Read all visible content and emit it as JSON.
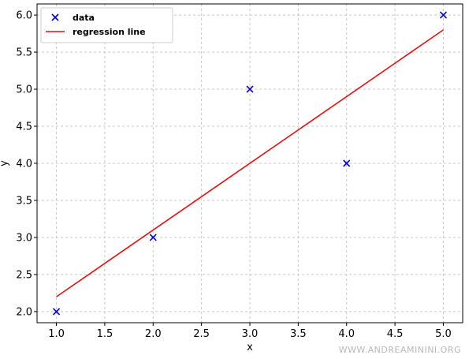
{
  "chart_data": {
    "type": "scatter",
    "xlabel": "x",
    "ylabel": "y",
    "xlim": [
      0.8,
      5.2
    ],
    "ylim": [
      1.85,
      6.15
    ],
    "x_ticks": [
      1.0,
      1.5,
      2.0,
      2.5,
      3.0,
      3.5,
      4.0,
      4.5,
      5.0
    ],
    "x_tick_labels": [
      "1.0",
      "1.5",
      "2.0",
      "2.5",
      "3.0",
      "3.5",
      "4.0",
      "4.5",
      "5.0"
    ],
    "y_ticks": [
      2.0,
      2.5,
      3.0,
      3.5,
      4.0,
      4.5,
      5.0,
      5.5,
      6.0
    ],
    "y_tick_labels": [
      "2.0",
      "2.5",
      "3.0",
      "3.5",
      "4.0",
      "4.5",
      "5.0",
      "5.5",
      "6.0"
    ],
    "grid": true,
    "legend_position": "top-left",
    "series": [
      {
        "name": "data",
        "kind": "scatter",
        "marker": "x",
        "color": "#0000cc",
        "x": [
          1,
          2,
          3,
          4,
          5
        ],
        "y": [
          2,
          3,
          5,
          4,
          6
        ]
      },
      {
        "name": "regression line",
        "kind": "line",
        "color": "#e01010",
        "x": [
          1,
          5
        ],
        "y": [
          2.2,
          5.8
        ]
      }
    ]
  },
  "watermark": "WWW.ANDREAMININI.ORG"
}
